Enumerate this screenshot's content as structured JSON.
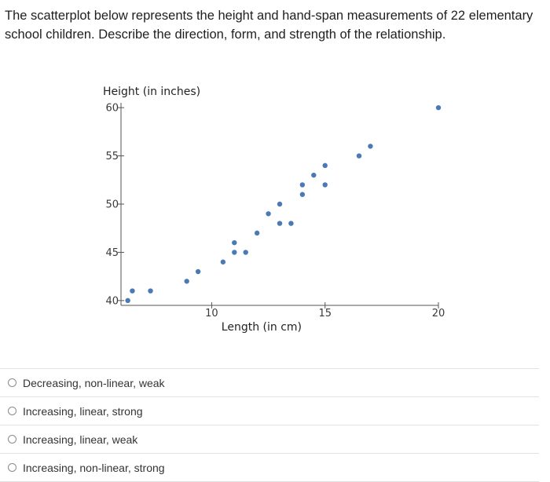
{
  "question": {
    "text": "The scatterplot below represents the height and hand-span measurements of 22 elementary school children. Describe the direction, form, and strength of the relationship."
  },
  "chart_data": {
    "type": "scatter",
    "title": "",
    "xlabel": "Length (in cm)",
    "ylabel": "Height (in inches)",
    "xlim": [
      6.0,
      20.0
    ],
    "ylim": [
      39.5,
      60.5
    ],
    "xticks": [
      10,
      15,
      20
    ],
    "yticks": [
      40,
      45,
      50,
      55,
      60
    ],
    "x_tick_labels": [
      "10",
      "15",
      "20"
    ],
    "y_tick_labels": [
      "40",
      "45",
      "50",
      "55",
      "60"
    ],
    "grid": false,
    "point_color": "#4a79b5",
    "x": [
      6.3,
      6.5,
      7.3,
      8.9,
      9.4,
      10.5,
      11.0,
      11.0,
      11.5,
      12.0,
      12.5,
      13.0,
      13.0,
      13.5,
      14.0,
      14.0,
      14.5,
      15.0,
      15.0,
      16.5,
      17.0,
      20.0
    ],
    "y": [
      40,
      41,
      41,
      42,
      43,
      44,
      45,
      46,
      45,
      47,
      49,
      48,
      50,
      48,
      51,
      52,
      53,
      52,
      54,
      55,
      56,
      60
    ]
  },
  "options": [
    {
      "label": "Decreasing, non-linear, weak"
    },
    {
      "label": "Increasing, linear, strong"
    },
    {
      "label": "Increasing, linear, weak"
    },
    {
      "label": "Increasing, non-linear, strong"
    }
  ]
}
